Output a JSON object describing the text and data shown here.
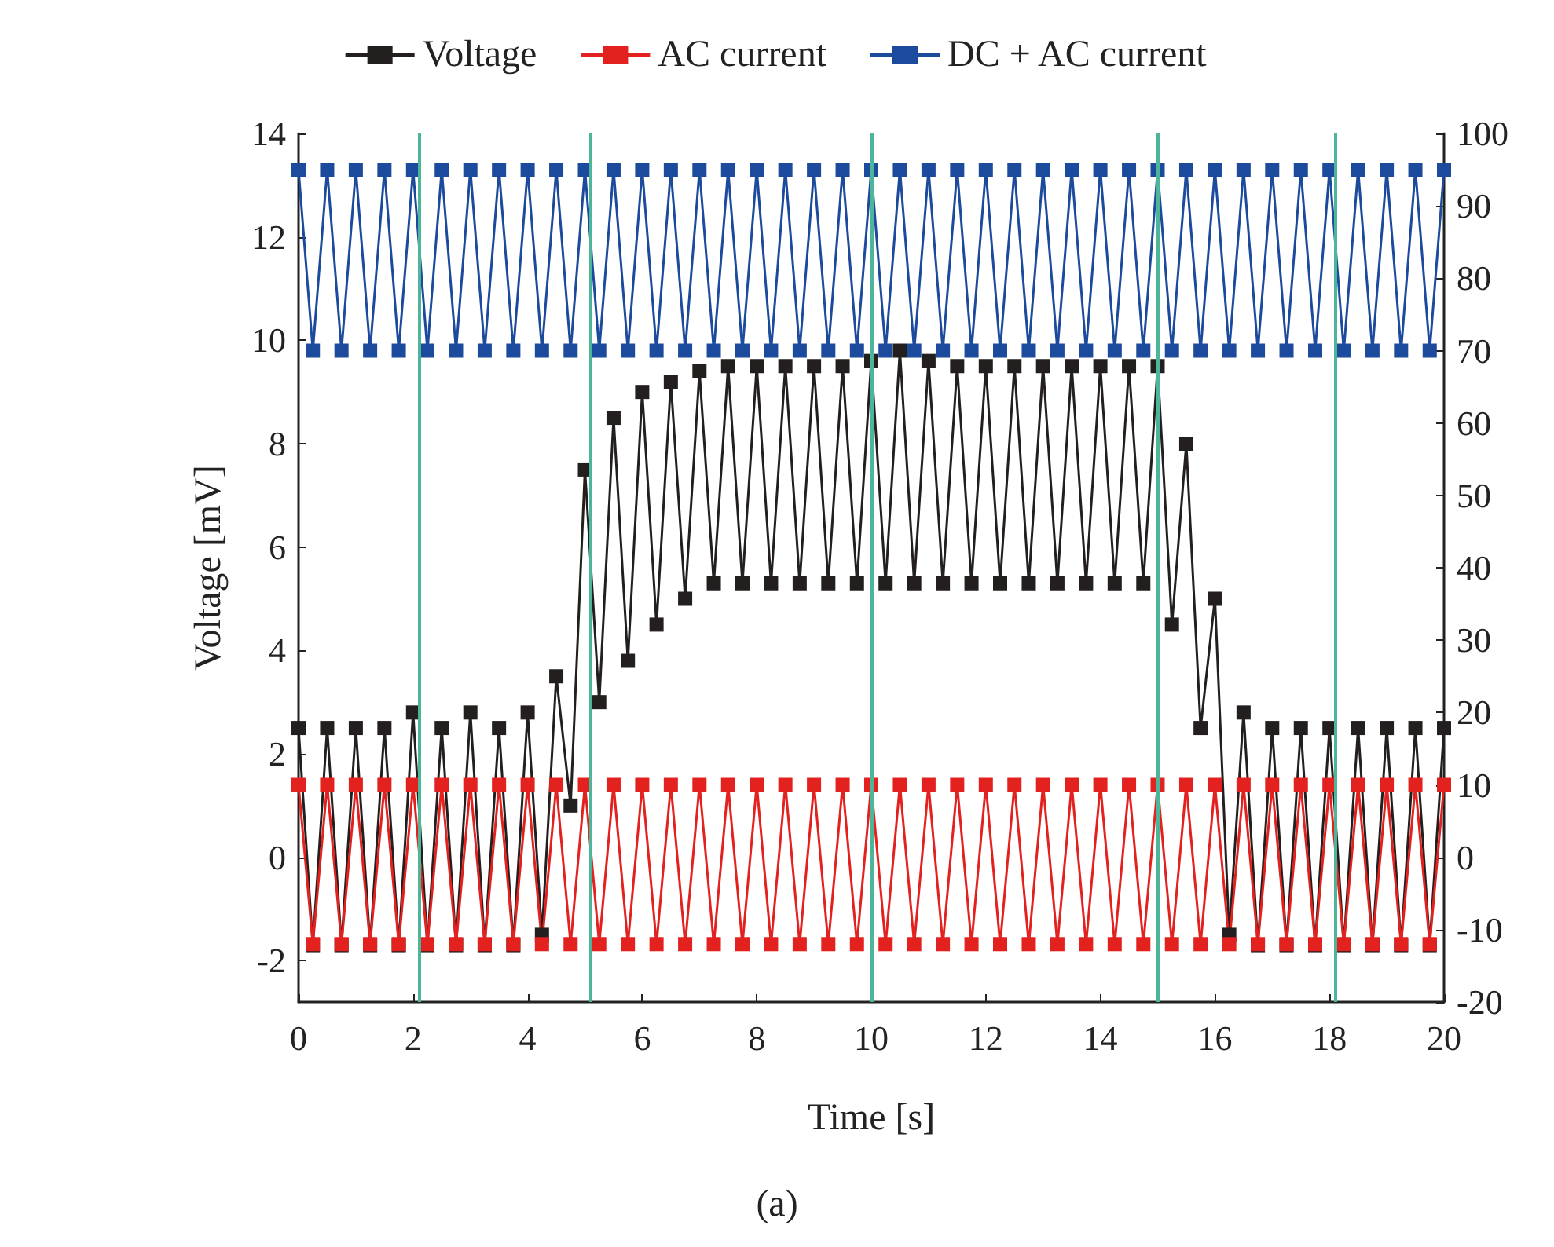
{
  "chart_data": {
    "type": "line",
    "xlabel": "Time [s]",
    "ylabel": "Voltage [mV]",
    "annotations": [
      "(a)"
    ],
    "x": [
      0,
      0.25,
      0.5,
      0.75,
      1,
      1.25,
      1.5,
      1.75,
      2,
      2.25,
      2.5,
      2.75,
      3,
      3.25,
      3.5,
      3.75,
      4,
      4.25,
      4.5,
      4.75,
      5,
      5.25,
      5.5,
      5.75,
      6,
      6.25,
      6.5,
      6.75,
      7,
      7.25,
      7.5,
      7.75,
      8,
      8.25,
      8.5,
      8.75,
      9,
      9.25,
      9.5,
      9.75,
      10,
      10.25,
      10.5,
      10.75,
      11,
      11.25,
      11.5,
      11.75,
      12,
      12.25,
      12.5,
      12.75,
      13,
      13.25,
      13.5,
      13.75,
      14,
      14.25,
      14.5,
      14.75,
      15,
      15.25,
      15.5,
      15.75,
      16,
      16.25,
      16.5,
      16.75,
      17,
      17.25,
      17.5,
      17.75,
      18,
      18.25,
      18.5,
      18.75,
      19,
      19.25,
      19.5,
      19.75,
      20
    ],
    "series": [
      {
        "name": "Voltage",
        "color": "#231f1e",
        "values": [
          2.5,
          -1.7,
          2.5,
          -1.7,
          2.5,
          -1.7,
          2.5,
          -1.7,
          2.8,
          -1.7,
          2.5,
          -1.7,
          2.8,
          -1.7,
          2.5,
          -1.7,
          2.8,
          -1.5,
          3.5,
          1.0,
          7.5,
          3.0,
          8.5,
          3.8,
          9.0,
          4.5,
          9.2,
          5.0,
          9.4,
          5.3,
          9.5,
          5.3,
          9.5,
          5.3,
          9.5,
          5.3,
          9.5,
          5.3,
          9.5,
          5.3,
          9.6,
          5.3,
          9.8,
          5.3,
          9.6,
          5.3,
          9.5,
          5.3,
          9.5,
          5.3,
          9.5,
          5.3,
          9.5,
          5.3,
          9.5,
          5.3,
          9.5,
          5.3,
          9.5,
          5.3,
          9.5,
          4.5,
          8.0,
          2.5,
          5.0,
          -1.5,
          2.8,
          -1.7,
          2.5,
          -1.7,
          2.5,
          -1.7,
          2.5,
          -1.7,
          2.5,
          -1.7,
          2.5,
          -1.7,
          2.5,
          -1.7,
          2.5
        ]
      },
      {
        "name": "AC current",
        "color": "#e3211f",
        "axis": "y2",
        "values": [
          10,
          -12,
          10,
          -12,
          10,
          -12,
          10,
          -12,
          10,
          -12,
          10,
          -12,
          10,
          -12,
          10,
          -12,
          10,
          -12,
          10,
          -12,
          10,
          -12,
          10,
          -12,
          10,
          -12,
          10,
          -12,
          10,
          -12,
          10,
          -12,
          10,
          -12,
          10,
          -12,
          10,
          -12,
          10,
          -12,
          10,
          -12,
          10,
          -12,
          10,
          -12,
          10,
          -12,
          10,
          -12,
          10,
          -12,
          10,
          -12,
          10,
          -12,
          10,
          -12,
          10,
          -12,
          10,
          -12,
          10,
          -12,
          10,
          -12,
          10,
          -12,
          10,
          -12,
          10,
          -12,
          10,
          -12,
          10,
          -12,
          10,
          -12,
          10,
          -12,
          10
        ]
      },
      {
        "name": "DC + AC current",
        "color": "#1c4a9c",
        "axis": "y2",
        "values": [
          95,
          70,
          95,
          70,
          95,
          70,
          95,
          70,
          95,
          70,
          95,
          70,
          95,
          70,
          95,
          70,
          95,
          70,
          95,
          70,
          95,
          70,
          95,
          70,
          95,
          70,
          95,
          70,
          95,
          70,
          95,
          70,
          95,
          70,
          95,
          70,
          95,
          70,
          95,
          70,
          95,
          70,
          95,
          70,
          95,
          70,
          95,
          70,
          95,
          70,
          95,
          70,
          95,
          70,
          95,
          70,
          95,
          70,
          95,
          70,
          95,
          70,
          95,
          70,
          95,
          70,
          95,
          70,
          95,
          70,
          95,
          70,
          95,
          70,
          95,
          70,
          95,
          70,
          95,
          70,
          95
        ]
      }
    ],
    "xlim": [
      0,
      20
    ],
    "xticks": [
      0,
      2,
      4,
      6,
      8,
      10,
      12,
      14,
      16,
      18,
      20
    ],
    "ylim": [
      -2.8,
      14
    ],
    "yticks": [
      -2,
      0,
      2,
      4,
      6,
      8,
      10,
      12,
      14
    ],
    "y2lim": [
      -20,
      100
    ],
    "y2ticks": [
      -20,
      -10,
      0,
      10,
      20,
      30,
      40,
      50,
      60,
      70,
      80,
      90,
      100
    ],
    "ref_lines": [
      {
        "axis": "x",
        "value": 2.1,
        "color": "#4cb59a"
      },
      {
        "axis": "x",
        "value": 5.1,
        "color": "#4cb59a"
      },
      {
        "axis": "x",
        "value": 10,
        "color": "#4cb59a"
      },
      {
        "axis": "x",
        "value": 15,
        "color": "#4cb59a"
      },
      {
        "axis": "x",
        "value": 18.1,
        "color": "#4cb59a"
      }
    ],
    "legend": "top",
    "marker": "square",
    "line_style": "solid",
    "grid": false
  }
}
